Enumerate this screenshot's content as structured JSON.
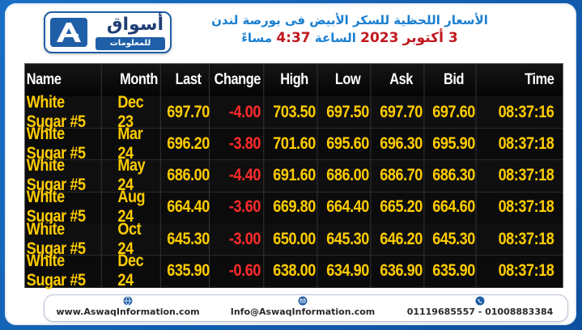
{
  "header": {
    "title_line1": "الأسعار اللحظية للسكر الأبيض فى بورصة لندن",
    "date_prefix": "3 أكتوبر",
    "year": "2023",
    "time_label": "الساعة",
    "time_value": "4:37",
    "period": "مساءً"
  },
  "logo": {
    "name_ar": "أسواق",
    "sub_ar": "للمعلومات",
    "accent": "#1f5fa8"
  },
  "table": {
    "columns": [
      "Name",
      "Month",
      "Last",
      "Change",
      "High",
      "Low",
      "Ask",
      "Bid",
      "Time"
    ],
    "rows": [
      {
        "name": "White Sugar #5",
        "month": "Dec 23",
        "last": "697.70",
        "change": "-4.00",
        "high": "703.50",
        "low": "697.50",
        "ask": "697.70",
        "bid": "697.60",
        "time": "08:37:16"
      },
      {
        "name": "White Sugar #5",
        "month": "Mar 24",
        "last": "696.20",
        "change": "-3.80",
        "high": "701.60",
        "low": "695.60",
        "ask": "696.30",
        "bid": "695.90",
        "time": "08:37:18"
      },
      {
        "name": "White Sugar #5",
        "month": "May 24",
        "last": "686.00",
        "change": "-4.40",
        "high": "691.60",
        "low": "686.00",
        "ask": "686.70",
        "bid": "686.30",
        "time": "08:37:18"
      },
      {
        "name": "White Sugar #5",
        "month": "Aug 24",
        "last": "664.40",
        "change": "-3.60",
        "high": "669.80",
        "low": "664.40",
        "ask": "665.20",
        "bid": "664.60",
        "time": "08:37:18"
      },
      {
        "name": "White Sugar #5",
        "month": "Oct 24",
        "last": "645.30",
        "change": "-3.00",
        "high": "650.00",
        "low": "645.30",
        "ask": "646.20",
        "bid": "645.30",
        "time": "08:37:18"
      },
      {
        "name": "White Sugar #5",
        "month": "Dec 24",
        "last": "635.90",
        "change": "-0.60",
        "high": "638.00",
        "low": "634.90",
        "ask": "636.90",
        "bid": "635.90",
        "time": "08:37:18"
      }
    ],
    "value_color": "#ffcc00",
    "negative_color": "#ff2b2b"
  },
  "footer": {
    "website": "www.AswaqInformation.com",
    "website_icon": "globe-icon",
    "email": "Info@AswaqInformation.com",
    "email_icon": "mail-icon",
    "phones": "01119685557 - 01008883384",
    "phone_icon": "phone-icon"
  }
}
